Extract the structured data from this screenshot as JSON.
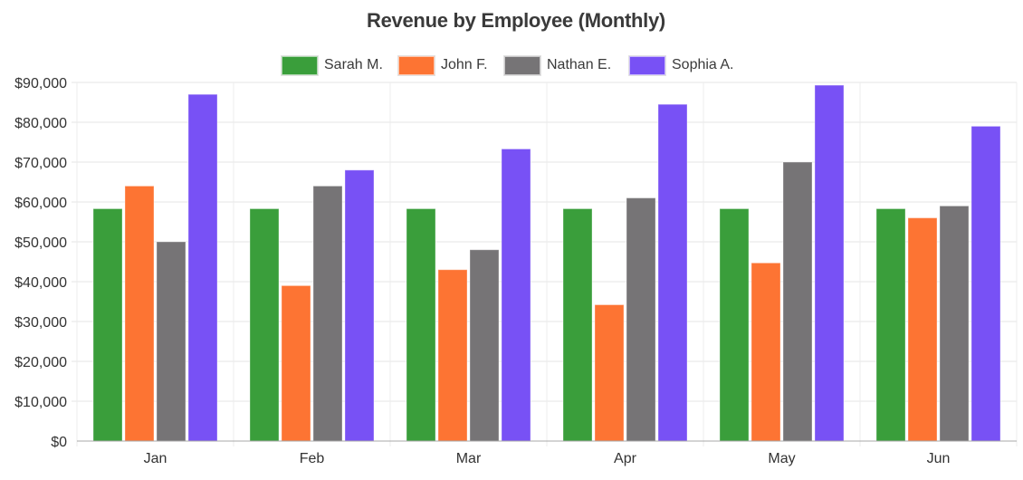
{
  "chart_data": {
    "type": "bar",
    "title": "Revenue by Employee (Monthly)",
    "xlabel": "",
    "ylabel": "",
    "categories": [
      "Jan",
      "Feb",
      "Mar",
      "Apr",
      "May",
      "Jun"
    ],
    "series": [
      {
        "name": "Sarah M.",
        "color": "#3a9e3b",
        "values": [
          58300,
          58300,
          58300,
          58300,
          58300,
          58300
        ]
      },
      {
        "name": "John F.",
        "color": "#fd7433",
        "values": [
          64000,
          39000,
          43000,
          34200,
          44700,
          56000
        ]
      },
      {
        "name": "Nathan E.",
        "color": "#767476",
        "values": [
          50000,
          64000,
          48000,
          61000,
          70000,
          59000
        ]
      },
      {
        "name": "Sophia A.",
        "color": "#7851f5",
        "values": [
          87000,
          68000,
          73300,
          84500,
          89300,
          79000
        ]
      }
    ],
    "ylim": [
      0,
      90000
    ],
    "yticks": [
      0,
      10000,
      20000,
      30000,
      40000,
      50000,
      60000,
      70000,
      80000,
      90000
    ],
    "ytick_labels": [
      "$0",
      "$10,000",
      "$20,000",
      "$30,000",
      "$40,000",
      "$50,000",
      "$60,000",
      "$70,000",
      "$80,000",
      "$90,000"
    ],
    "grid": true,
    "legend_position": "top-center"
  }
}
